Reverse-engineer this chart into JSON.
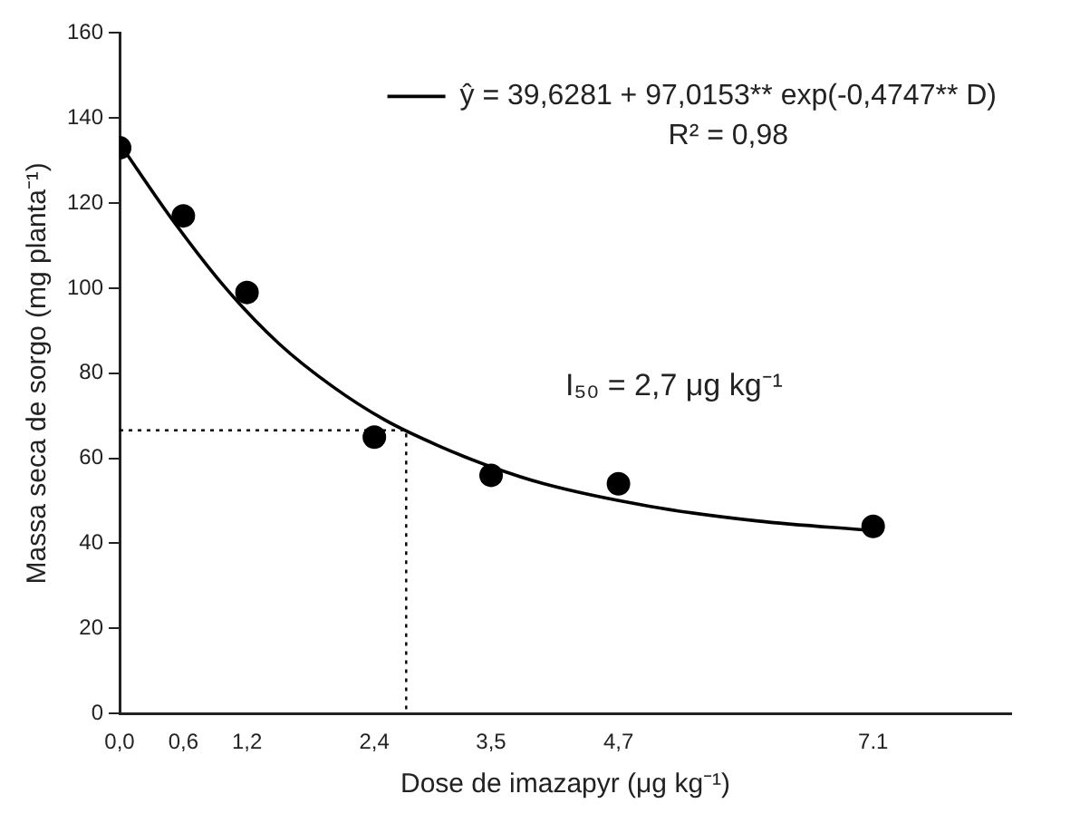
{
  "chart_data": {
    "type": "scatter",
    "xlabel": "Dose de imazapyr (μg kg⁻¹)",
    "ylabel": "Massa seca de sorgo (mg planta⁻¹)",
    "x": [
      0,
      0.6,
      1.2,
      2.4,
      3.5,
      4.7,
      7.1
    ],
    "series": [
      {
        "type": "scatter",
        "color": "#000000",
        "marker": "circle",
        "values": [
          133,
          117,
          99,
          65,
          56,
          54,
          44
        ]
      },
      {
        "type": "line",
        "name": "ŷ = 39,6281 + 97,0153** exp(-0,4747** D)",
        "color": "#000000",
        "marker": "none",
        "line_style": "solid",
        "x": [
          0,
          0.5,
          1,
          1.5,
          2,
          2.5,
          3,
          3.5,
          4,
          5,
          6,
          7.1
        ],
        "values": [
          134,
          116,
          100,
          87,
          77,
          69,
          63,
          58,
          54,
          48.7,
          45.3,
          43
        ]
      },
      {
        "type": "line",
        "color": "#000000",
        "marker": "none",
        "line_style": "dotted",
        "x": [
          0,
          2.7,
          2.7
        ],
        "values": [
          66.6,
          66.6,
          0
        ]
      }
    ],
    "xlim": [
      0,
      8.4
    ],
    "xticks": [
      {
        "value": 0,
        "label": "0,0"
      },
      {
        "value": 0.6,
        "label": "0,6"
      },
      {
        "value": 1.2,
        "label": "1,2"
      },
      {
        "value": 2.4,
        "label": "2,4"
      },
      {
        "value": 3.5,
        "label": "3,5"
      },
      {
        "value": 4.7,
        "label": "4,7"
      },
      {
        "value": 7.1,
        "label": "7.1"
      }
    ],
    "ylim": [
      0,
      160
    ],
    "yticks": [
      0,
      20,
      40,
      60,
      80,
      100,
      120,
      140,
      160
    ],
    "annotations": [
      "R² = 0,98",
      "I₅₀ = 2,7 μg kg⁻¹"
    ],
    "legend": "top right",
    "grid": false
  }
}
